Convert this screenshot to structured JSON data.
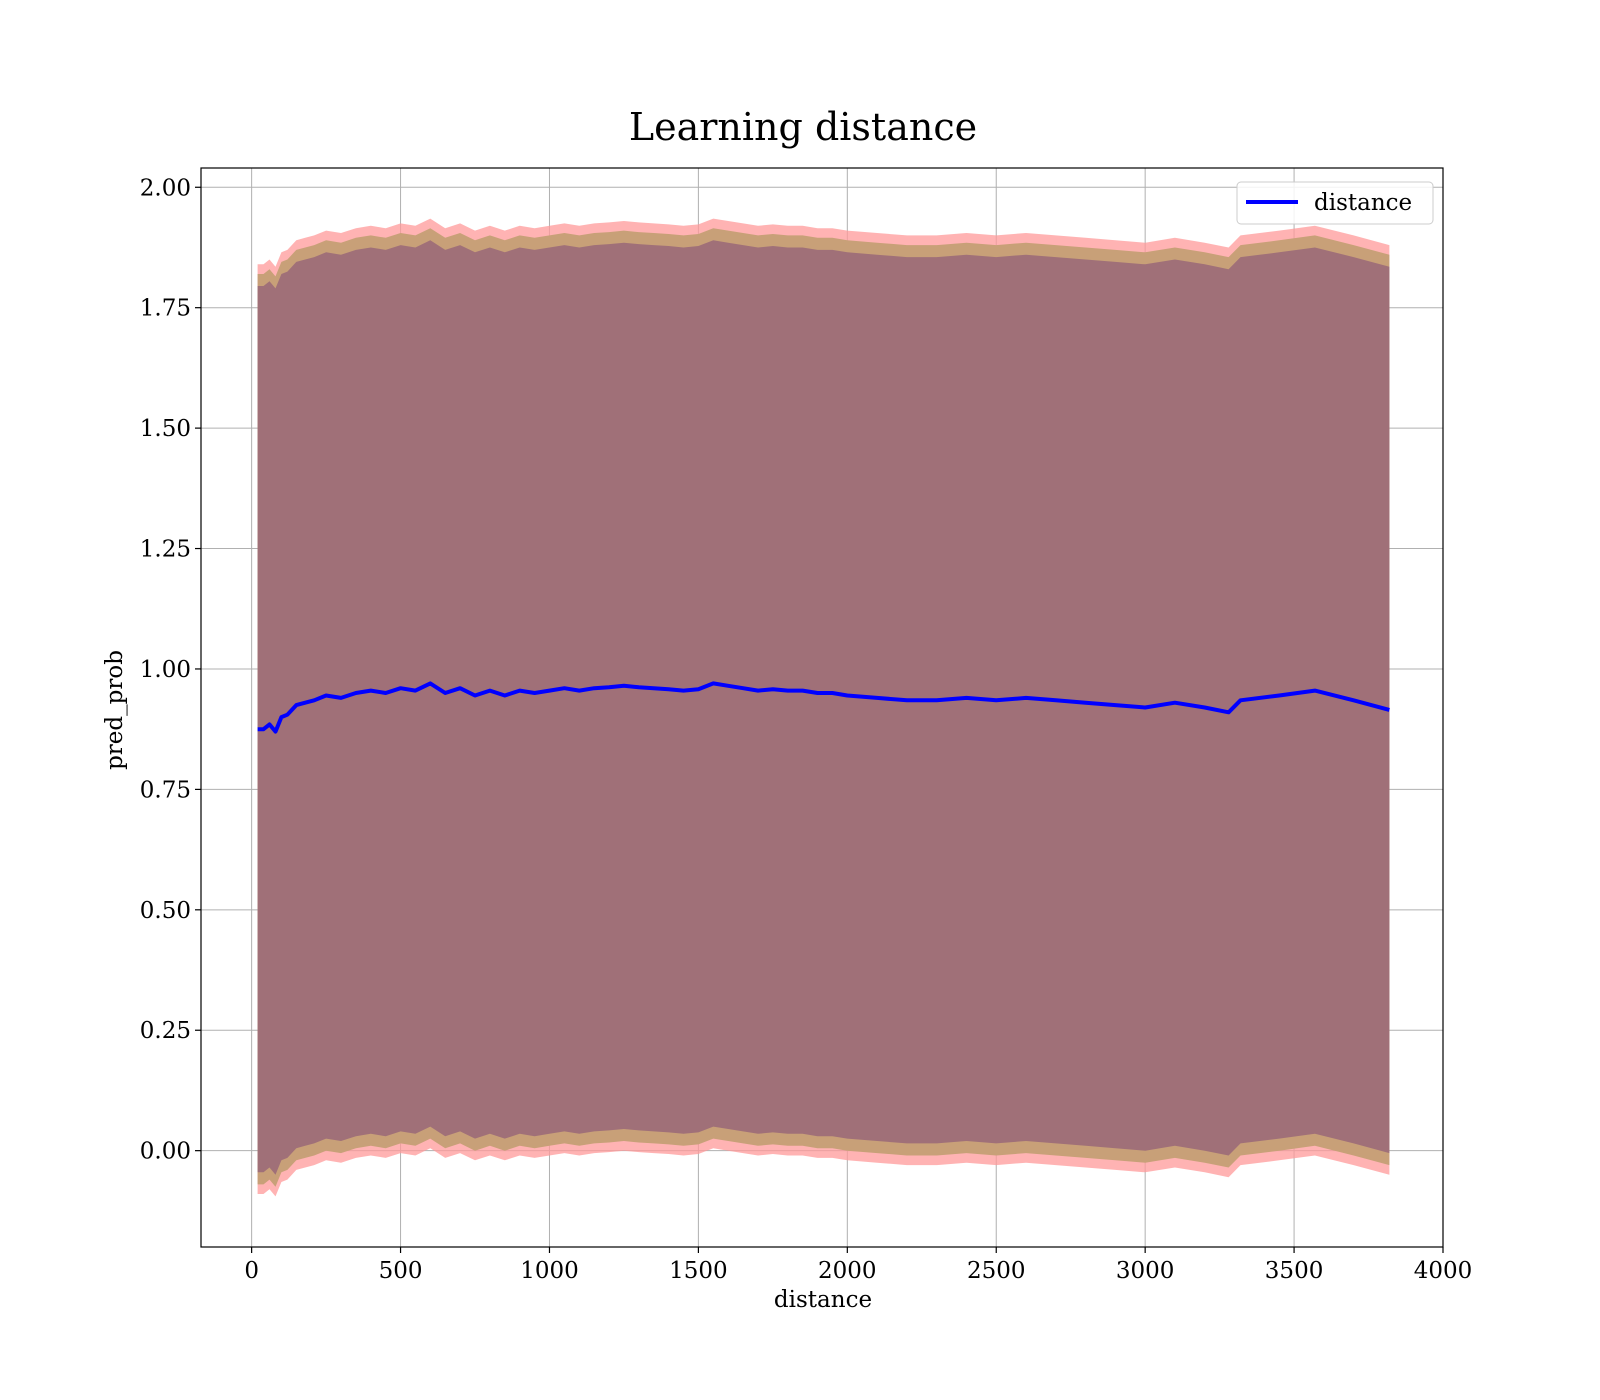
{
  "chart_data": {
    "type": "area",
    "title": "Learning distance",
    "xlabel": "distance",
    "ylabel": "pred_prob",
    "xlim": [
      -170,
      4000
    ],
    "ylim": [
      -0.2,
      2.04
    ],
    "xticks": [
      0,
      500,
      1000,
      1500,
      2000,
      2500,
      3000,
      3500,
      4000
    ],
    "yticks": [
      0.0,
      0.25,
      0.5,
      0.75,
      1.0,
      1.25,
      1.5,
      1.75,
      2.0
    ],
    "ytick_labels": [
      "0.00",
      "0.25",
      "0.50",
      "0.75",
      "1.00",
      "1.25",
      "1.50",
      "1.75",
      "2.00"
    ],
    "grid": true,
    "legend": {
      "position": "top-right",
      "entries": [
        "distance"
      ]
    },
    "colors": {
      "line": "#0000ff",
      "band_outer": "#ff9999",
      "band_middle": "#c8a078",
      "band_inner": "#a07078"
    },
    "series": [
      {
        "name": "distance",
        "x": [
          20,
          40,
          60,
          80,
          100,
          120,
          150,
          180,
          210,
          250,
          300,
          350,
          400,
          450,
          500,
          550,
          600,
          650,
          700,
          750,
          800,
          850,
          900,
          950,
          1000,
          1050,
          1100,
          1150,
          1200,
          1250,
          1300,
          1350,
          1400,
          1450,
          1500,
          1550,
          1600,
          1650,
          1700,
          1750,
          1800,
          1850,
          1900,
          1950,
          2000,
          2100,
          2200,
          2300,
          2400,
          2500,
          2600,
          2700,
          2800,
          2900,
          3000,
          3100,
          3200,
          3280,
          3320,
          3450,
          3570,
          3700,
          3820
        ],
        "values": [
          0.875,
          0.875,
          0.885,
          0.87,
          0.9,
          0.905,
          0.925,
          0.93,
          0.935,
          0.945,
          0.94,
          0.95,
          0.955,
          0.95,
          0.96,
          0.955,
          0.97,
          0.95,
          0.96,
          0.945,
          0.955,
          0.945,
          0.955,
          0.95,
          0.955,
          0.96,
          0.955,
          0.96,
          0.962,
          0.965,
          0.962,
          0.96,
          0.958,
          0.955,
          0.958,
          0.97,
          0.965,
          0.96,
          0.955,
          0.958,
          0.955,
          0.955,
          0.95,
          0.95,
          0.945,
          0.94,
          0.935,
          0.935,
          0.94,
          0.935,
          0.94,
          0.935,
          0.93,
          0.925,
          0.92,
          0.93,
          0.92,
          0.91,
          0.935,
          0.945,
          0.955,
          0.935,
          0.915
        ],
        "band_outer_halfwidth": 0.965,
        "band_middle_halfwidth": 0.945,
        "band_inner_halfwidth": 0.92
      }
    ]
  }
}
